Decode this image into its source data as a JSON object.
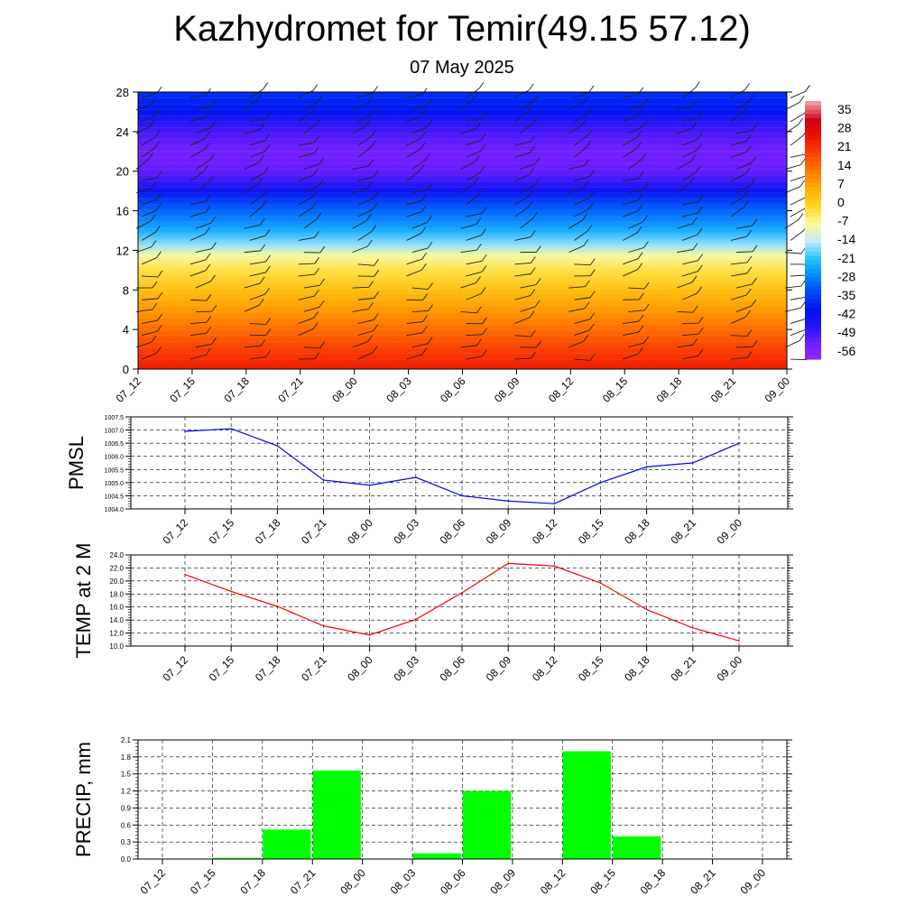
{
  "title": "Kazhydromet for Temir(49.15 57.12)",
  "subtitle": "07 May 2025",
  "time_labels": [
    "07_12",
    "07_15",
    "07_18",
    "07_21",
    "08_00",
    "08_03",
    "08_06",
    "08_09",
    "08_12",
    "08_15",
    "08_18",
    "08_21",
    "09_00"
  ],
  "colors": {
    "pmsl_line": "#0000ff",
    "temp_line": "#ff0000",
    "precip_bar": "#00ff00",
    "grid": "#000000"
  },
  "chart_data": [
    {
      "type": "heatmap",
      "name": "cross-section",
      "y_ticks": [
        0,
        4,
        8,
        12,
        16,
        20,
        24,
        28
      ],
      "ylim": [
        0,
        28
      ],
      "colorbar_labels": [
        "35",
        "28",
        "21",
        "14",
        "7",
        "0",
        "-7",
        "-14",
        "-21",
        "-28",
        "-35",
        "-42",
        "-49",
        "-56"
      ],
      "colorbar_range": [
        -63,
        42
      ],
      "temperature_profile": [
        {
          "level": 0,
          "value": 27
        },
        {
          "level": 2,
          "value": 22
        },
        {
          "level": 4,
          "value": 16
        },
        {
          "level": 6,
          "value": 10
        },
        {
          "level": 8,
          "value": 4
        },
        {
          "level": 10,
          "value": -2
        },
        {
          "level": 11.5,
          "value": -8
        },
        {
          "level": 12.5,
          "value": -16
        },
        {
          "level": 14,
          "value": -24
        },
        {
          "level": 16,
          "value": -32
        },
        {
          "level": 18,
          "value": -44
        },
        {
          "level": 20,
          "value": -55
        },
        {
          "level": 22,
          "value": -57
        },
        {
          "level": 24,
          "value": -52
        },
        {
          "level": 26,
          "value": -42
        },
        {
          "level": 28,
          "value": -38
        }
      ]
    },
    {
      "type": "line",
      "name": "pmsl",
      "ylabel": "PMSL",
      "y_ticks": [
        "1004.0",
        "1004.5",
        "1005.0",
        "1005.5",
        "1006.0",
        "1006.5",
        "1007.0",
        "1007.5"
      ],
      "ylim": [
        1004.0,
        1007.5
      ],
      "values": [
        1006.95,
        1007.05,
        1006.4,
        1005.1,
        1004.9,
        1005.2,
        1004.5,
        1004.3,
        1004.2,
        1005.0,
        1005.6,
        1005.75,
        1006.5
      ]
    },
    {
      "type": "line",
      "name": "temp2m",
      "ylabel": "TEMP at 2 M",
      "y_ticks": [
        "10.0",
        "12.0",
        "14.0",
        "16.0",
        "18.0",
        "20.0",
        "22.0",
        "24.0"
      ],
      "ylim": [
        10.0,
        24.0
      ],
      "values": [
        21.0,
        18.4,
        16.1,
        13.1,
        11.7,
        14.1,
        18.2,
        22.7,
        22.3,
        19.7,
        15.6,
        12.8,
        10.8
      ]
    },
    {
      "type": "bar",
      "name": "precip",
      "ylabel": "PRECIP, mm",
      "y_ticks": [
        "0.0",
        "0.3",
        "0.6",
        "0.9",
        "1.2",
        "1.5",
        "1.8",
        "2.1"
      ],
      "ylim": [
        0.0,
        2.1
      ],
      "values": [
        0.0,
        0.02,
        0.52,
        1.56,
        0.0,
        0.1,
        1.2,
        0.0,
        1.9,
        0.4,
        0.0,
        0.0,
        0.0
      ]
    }
  ]
}
